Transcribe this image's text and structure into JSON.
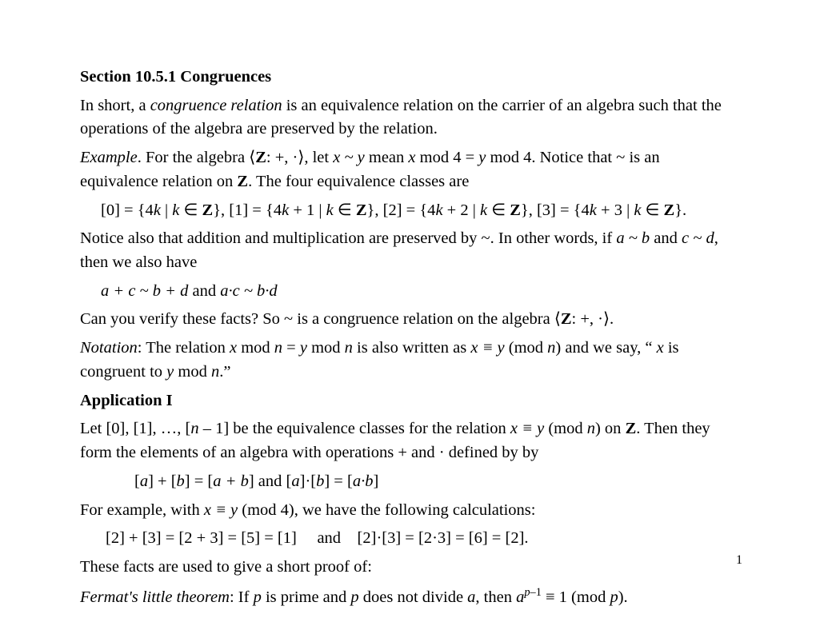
{
  "title": "Section 10.5.1 Congruences",
  "p1a": "In short, a ",
  "p1b": "congruence relation",
  "p1c": " is an equivalence relation on the carrier of an algebra such that the operations of the algebra are preserved by the relation.",
  "ex_label": "Example",
  "p2a": ". For the algebra ⟨",
  "p2z": "Z",
  "p2b": ": +, ·⟩, let ",
  "p2c": "x ~ y",
  "p2d": " mean ",
  "p2e": "x",
  "p2f": " mod 4 = ",
  "p2g": "y",
  "p2h": " mod 4. Notice that ~ is an equivalence relation on ",
  "p2i": ". The four equivalence classes are",
  "eq1a": "[0] = {4",
  "eq1b": "k",
  "eq1c": " | ",
  "eq1d": "k",
  "eq1e": " ∈ ",
  "eq1f": "}, [1] = {4",
  "eq1g": "k",
  "eq1h": " + 1 | ",
  "eq1i": "k",
  "eq1j": " ∈ ",
  "eq1k": "}, [2] = {4",
  "eq1l": "k",
  "eq1m": " + 2 | ",
  "eq1n": "k",
  "eq1o": " ∈ ",
  "eq1p": "}, [3] = {4",
  "eq1q": "k",
  "eq1r": " + 3 | ",
  "eq1s": "k",
  "eq1t": " ∈ ",
  "eq1u": "}.",
  "p3a": "Notice also that addition and multiplication are preserved by ~. In other words, if ",
  "p3b": "a ~ b",
  "p3c": " and ",
  "p3d": "c ~ d",
  "p3e": ", then we also have",
  "eq2a": "a + c ~ b + d ",
  "eq2b": " and  ",
  "eq2c": "a·c ~ b·d",
  "p4a": "Can you verify these facts? So ~ is a congruence relation on the algebra ⟨",
  "p4b": ": +, ·⟩.",
  "not_label": "Notation",
  "p5a": ": The relation ",
  "p5b": "x",
  "p5c": " mod ",
  "p5d": "n",
  "p5e": " = ",
  "p5f": "y",
  "p5g": " mod ",
  "p5h": "n",
  "p5i": " is also written as ",
  "p5j": "x ≡ y ",
  "p5k": "(mod ",
  "p5l": "n",
  "p5m": ") and we say, “ ",
  "p5n": "x",
  "p5o": " is congruent to ",
  "p5p": "y",
  "p5q": " mod ",
  "p5r": "n",
  "p5s": ".”",
  "app_heading": "Application I",
  "p6a": "Let [0], [1], …, [",
  "p6b": "n",
  "p6c": " – 1] be the equivalence classes for the relation ",
  "p6d": "x ≡ y ",
  "p6e": "(mod ",
  "p6f": "n",
  "p6g": ") on ",
  "p6h": ". Then they form the elements of an algebra with operations + and · defined by by",
  "eq3a": "[",
  "eq3b": "a",
  "eq3c": "] + [",
  "eq3d": "b",
  "eq3e": "] = [",
  "eq3f": "a + b",
  "eq3g": "] and [",
  "eq3h": "a",
  "eq3i": "]·[",
  "eq3j": "b",
  "eq3k": "] = [",
  "eq3l": "a·b",
  "eq3m": "]",
  "p7a": "For example, with ",
  "p7b": "x ≡ y ",
  "p7c": "(mod 4), we have the following calculations:",
  "eq4": "[2] + [3] = [2 + 3] = [5] = [1]     and    [2]·[3] = [2·3] = [6] = [2].",
  "p8": "These facts are used to give a short proof of:",
  "flt_label": "Fermat's little theorem",
  "p9a": ": If ",
  "p9b": "p",
  "p9c": " is prime and ",
  "p9d": "p",
  "p9e": " does not divide ",
  "p9f": "a",
  "p9g": ", then ",
  "p9h": "a",
  "p9i": "p",
  "p9j": "–1",
  "p9k": " ≡ 1 (mod ",
  "p9l": "p",
  "p9m": ").",
  "page_num": "1"
}
